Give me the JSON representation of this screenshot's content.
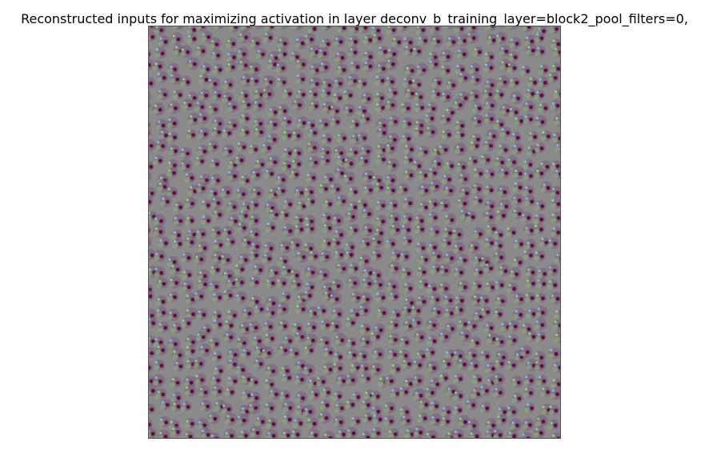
{
  "figure": {
    "title": "Reconstructed inputs for maximizing activation in layer deconv_b_training_layer=block2_pool_filters=0,"
  },
  "image": {
    "description_colors": {
      "background": "#8a8a8a",
      "dark_spot": "#5a0a3a",
      "green_highlight": "#8fe08a",
      "blue_highlight": "#8ec6e6",
      "purple_tone": "#7a5a7e"
    }
  }
}
